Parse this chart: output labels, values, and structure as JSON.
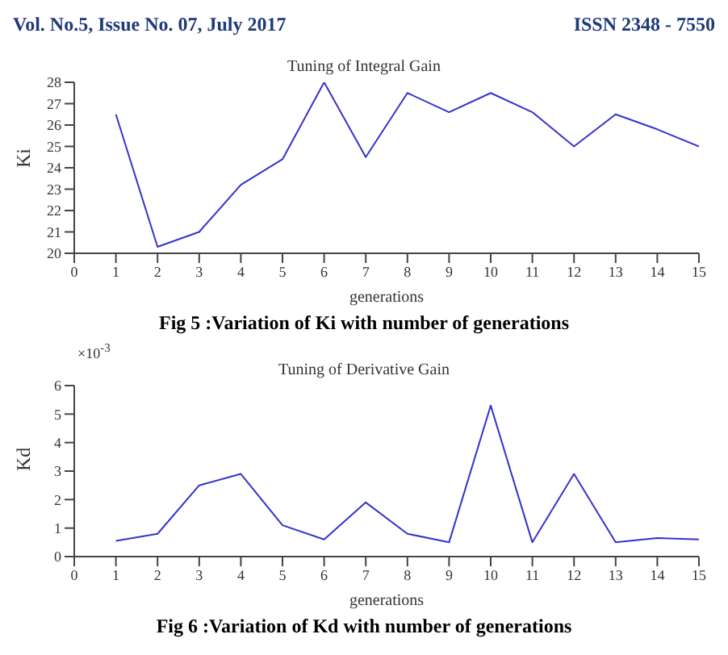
{
  "chart_data": [
    {
      "type": "line",
      "title": "Tuning of Integral Gain",
      "xlabel": "generations",
      "ylabel": "Ki",
      "x": [
        1,
        2,
        3,
        4,
        5,
        6,
        7,
        8,
        9,
        10,
        11,
        12,
        13,
        14,
        15
      ],
      "series": [
        {
          "color": "#3333cc",
          "values": [
            26.5,
            20.3,
            21,
            23.2,
            24.4,
            28,
            24.5,
            27.5,
            26.6,
            27.5,
            26.6,
            25,
            26.5,
            25.8,
            25
          ]
        }
      ],
      "xlim": [
        0,
        15
      ],
      "xticks": [
        0,
        1,
        2,
        3,
        4,
        5,
        6,
        7,
        8,
        9,
        10,
        11,
        12,
        13,
        14,
        15
      ],
      "ylim": [
        20,
        28
      ],
      "yticks": [
        20,
        21,
        22,
        23,
        24,
        25,
        26,
        27,
        28
      ],
      "grid": false,
      "legend": false,
      "marker": "none",
      "line_style": "solid",
      "annotations": [
        "Vol. No.5, Issue No. 07, July 2017",
        "ISSN 2348 - 7550",
        "Fig 5 :Variation of Ki with number of generations"
      ]
    },
    {
      "type": "line",
      "title": "Tuning of Derivative Gain",
      "xlabel": "generations",
      "ylabel": "Kd",
      "x": [
        1,
        2,
        3,
        4,
        5,
        6,
        7,
        8,
        9,
        10,
        11,
        12,
        13,
        14,
        15
      ],
      "series": [
        {
          "color": "#3333cc",
          "values": [
            0.55,
            0.8,
            2.5,
            2.9,
            1.1,
            0.6,
            1.9,
            0.8,
            0.5,
            5.3,
            0.5,
            2.9,
            0.5,
            0.65,
            0.6
          ]
        }
      ],
      "xlim": [
        0,
        15
      ],
      "xticks": [
        0,
        1,
        2,
        3,
        4,
        5,
        6,
        7,
        8,
        9,
        10,
        11,
        12,
        13,
        14,
        15
      ],
      "ylim": [
        0,
        6
      ],
      "yticks": [
        0,
        1,
        2,
        3,
        4,
        5,
        6
      ],
      "grid": false,
      "legend": false,
      "marker": "none",
      "line_style": "solid",
      "annotations": [
        "×10$^{-3}$",
        "Fig 6 :Variation of Kd with number of generations"
      ]
    }
  ]
}
